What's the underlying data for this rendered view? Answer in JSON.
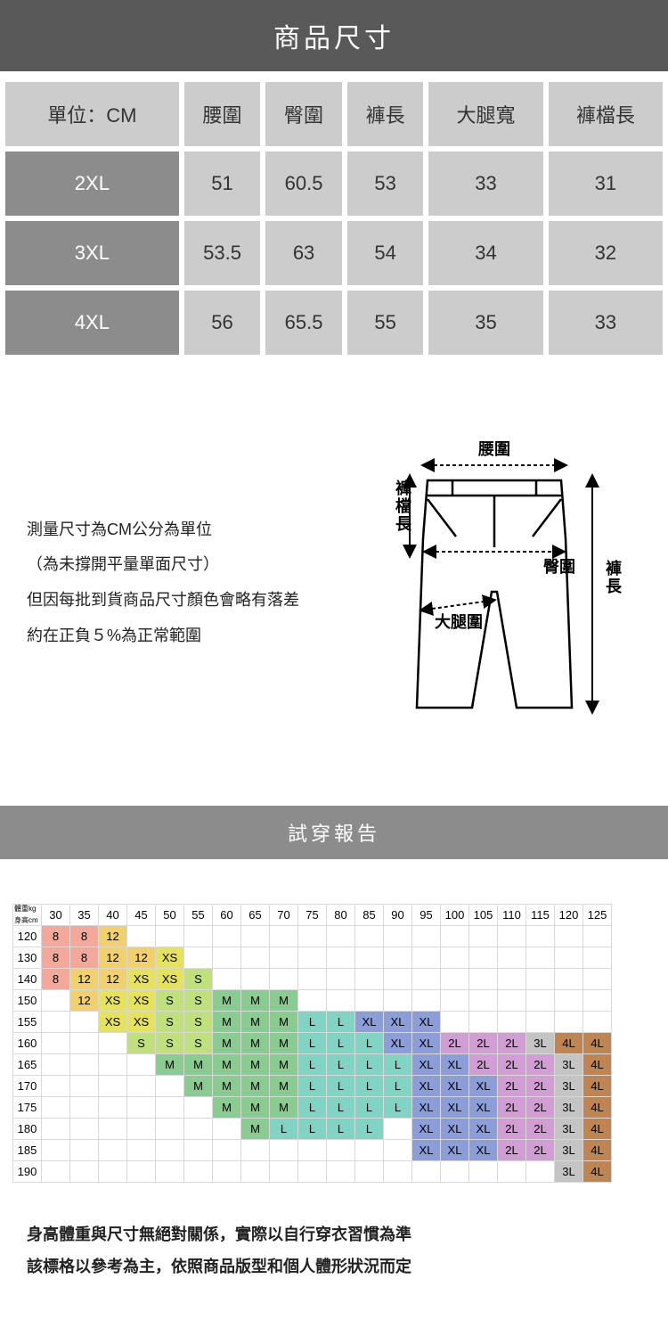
{
  "header": {
    "title": "商品尺寸"
  },
  "sizeTable": {
    "columns": [
      "單位：CM",
      "腰圍",
      "臀圍",
      "褲長",
      "大腿寬",
      "褲檔長"
    ],
    "rows": [
      {
        "label": "2XL",
        "values": [
          "51",
          "60.5",
          "53",
          "33",
          "31"
        ]
      },
      {
        "label": "3XL",
        "values": [
          "53.5",
          "63",
          "54",
          "34",
          "32"
        ]
      },
      {
        "label": "4XL",
        "values": [
          "56",
          "65.5",
          "55",
          "35",
          "33"
        ]
      }
    ]
  },
  "measureNotes": {
    "line1": "測量尺寸為CM公分為單位",
    "line2": "（為未撐開平量單面尺寸）",
    "line3": "但因每批到貨商品尺寸顏色會略有落差",
    "line4": "約在正負５%為正常範圍"
  },
  "diagramLabels": {
    "waist": "腰圍",
    "hip": "臀圍",
    "length": "褲長",
    "rise": "褲檔長",
    "thigh": "大腿圍"
  },
  "fitReport": {
    "title": "試穿報告"
  },
  "fitTable": {
    "axisTop": "體重kg",
    "axisLeft": "身高cm",
    "weights": [
      "30",
      "35",
      "40",
      "45",
      "50",
      "55",
      "60",
      "65",
      "70",
      "75",
      "80",
      "85",
      "90",
      "95",
      "100",
      "105",
      "110",
      "115",
      "120",
      "125"
    ],
    "heights": [
      "120",
      "130",
      "140",
      "150",
      "155",
      "160",
      "165",
      "170",
      "175",
      "180",
      "185",
      "190"
    ],
    "colors": {
      "8": "#f4a89a",
      "12": "#f2d06b",
      "XS": "#e6e25a",
      "S": "#bfe07a",
      "M": "#89cc8f",
      "L": "#7fd4c4",
      "XL": "#8c9ed9",
      "2L": "#d29cd4",
      "3L": "#c4c4c4",
      "4L": "#bf8450"
    },
    "grid": [
      [
        "8",
        "8",
        "12",
        "",
        "",
        "",
        "",
        "",
        "",
        "",
        "",
        "",
        "",
        "",
        "",
        "",
        "",
        "",
        "",
        ""
      ],
      [
        "8",
        "8",
        "12",
        "12",
        "XS",
        "",
        "",
        "",
        "",
        "",
        "",
        "",
        "",
        "",
        "",
        "",
        "",
        "",
        "",
        ""
      ],
      [
        "8",
        "12",
        "12",
        "XS",
        "XS",
        "S",
        "",
        "",
        "",
        "",
        "",
        "",
        "",
        "",
        "",
        "",
        "",
        "",
        "",
        ""
      ],
      [
        "",
        "12",
        "XS",
        "XS",
        "S",
        "S",
        "M",
        "M",
        "M",
        "",
        "",
        "",
        "",
        "",
        "",
        "",
        "",
        "",
        "",
        ""
      ],
      [
        "",
        "",
        "XS",
        "XS",
        "S",
        "S",
        "M",
        "M",
        "M",
        "L",
        "L",
        "XL",
        "XL",
        "XL",
        "",
        "",
        "",
        "",
        "",
        ""
      ],
      [
        "",
        "",
        "",
        "S",
        "S",
        "S",
        "M",
        "M",
        "M",
        "L",
        "L",
        "L",
        "XL",
        "XL",
        "2L",
        "2L",
        "2L",
        "3L",
        "4L",
        "4L"
      ],
      [
        "",
        "",
        "",
        "",
        "M",
        "M",
        "M",
        "M",
        "M",
        "L",
        "L",
        "L",
        "L",
        "XL",
        "XL",
        "2L",
        "2L",
        "2L",
        "3L",
        "4L"
      ],
      [
        "",
        "",
        "",
        "",
        "",
        "M",
        "M",
        "M",
        "M",
        "L",
        "L",
        "L",
        "L",
        "XL",
        "XL",
        "XL",
        "2L",
        "2L",
        "3L",
        "4L"
      ],
      [
        "",
        "",
        "",
        "",
        "",
        "",
        "M",
        "M",
        "M",
        "L",
        "L",
        "L",
        "L",
        "XL",
        "XL",
        "XL",
        "2L",
        "2L",
        "3L",
        "4L"
      ],
      [
        "",
        "",
        "",
        "",
        "",
        "",
        "",
        "M",
        "L",
        "L",
        "L",
        "L",
        "",
        "XL",
        "XL",
        "XL",
        "2L",
        "2L",
        "3L",
        "4L"
      ],
      [
        "",
        "",
        "",
        "",
        "",
        "",
        "",
        "",
        "",
        "",
        "",
        "",
        "",
        "XL",
        "XL",
        "XL",
        "2L",
        "2L",
        "3L",
        "4L"
      ],
      [
        "",
        "",
        "",
        "",
        "",
        "",
        "",
        "",
        "",
        "",
        "",
        "",
        "",
        "",
        "",
        "",
        "",
        "",
        "3L",
        "4L"
      ]
    ]
  },
  "footerNotes": {
    "line1": "身高體重與尺寸無絕對關係，實際以自行穿衣習慣為準",
    "line2": "該標格以參考為主，依照商品版型和個人體形狀況而定"
  }
}
